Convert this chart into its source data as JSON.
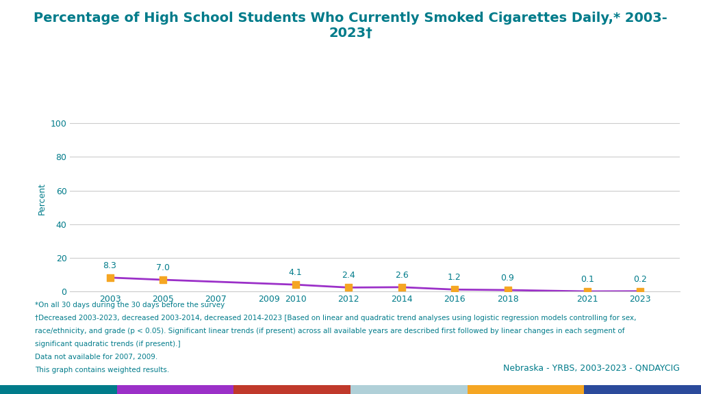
{
  "title": "Percentage of High School Students Who Currently Smoked Cigarettes Daily,* 2003-\n2023†",
  "years": [
    2003,
    2005,
    2010,
    2012,
    2014,
    2016,
    2018,
    2021,
    2023
  ],
  "values": [
    8.3,
    7.0,
    4.1,
    2.4,
    2.6,
    1.2,
    0.9,
    0.1,
    0.2
  ],
  "x_ticks": [
    2003,
    2005,
    2007,
    2009,
    2010,
    2012,
    2014,
    2016,
    2018,
    2021,
    2023
  ],
  "x_tick_labels": [
    "2003",
    "2005",
    "2007",
    "2009",
    "2010",
    "2012",
    "2014",
    "2016",
    "2018",
    "2021",
    "2023"
  ],
  "y_ticks": [
    0,
    20,
    40,
    60,
    80,
    100
  ],
  "ylim": [
    0,
    110
  ],
  "xlim": [
    2001.5,
    2024.5
  ],
  "ylabel": "Percent",
  "line_color": "#9B30C8",
  "marker_color": "#F5A623",
  "title_color": "#007B8A",
  "axis_color": "#007B8A",
  "tick_color": "#007B8A",
  "footnote_color": "#007B8A",
  "background_color": "#FFFFFF",
  "plot_bg_color": "#FFFFFF",
  "grid_color": "#CCCCCC",
  "footnote1": "*On all 30 days during the 30 days before the survey",
  "footnote2": "†Decreased 2003-2023, decreased 2003-2014, decreased 2014-2023 [Based on linear and quadratic trend analyses using logistic regression models controlling for sex,",
  "footnote3": "race/ethnicity, and grade (p < 0.05). Significant linear trends (if present) across all available years are described first followed by linear changes in each segment of",
  "footnote4": "significant quadratic trends (if present).]",
  "footnote5": "Data not available for 2007, 2009.",
  "footnote6": "This graph contains weighted results.",
  "source_text": "Nebraska - YRBS, 2003-2023 - QNDAYCIG",
  "source_color": "#007B8A",
  "bar_colors": [
    "#007B8A",
    "#9B30C8",
    "#C0392B",
    "#B0D0D8",
    "#F5A623",
    "#2B4A9B"
  ],
  "title_fontsize": 14,
  "annotation_fontsize": 9,
  "footnote_fontsize": 7.5,
  "source_fontsize": 9,
  "ylabel_fontsize": 9,
  "ytick_fontsize": 9,
  "xtick_fontsize": 9
}
